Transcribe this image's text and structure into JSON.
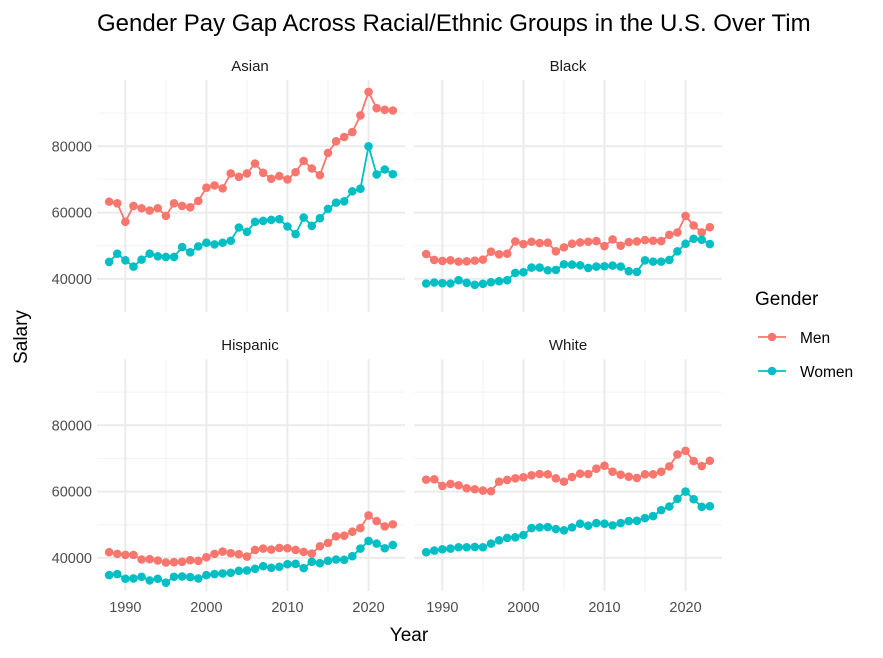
{
  "chart_data": {
    "type": "line",
    "title": "Gender Pay Gap Across Racial/Ethnic Groups in the U.S. Over Tim",
    "xlabel": "Year",
    "ylabel": "Salary",
    "xlim": [
      1986.5,
      2024.5
    ],
    "ylim": [
      30000,
      100000
    ],
    "x_ticks": [
      1990,
      2000,
      2010,
      2020
    ],
    "y_ticks": [
      40000,
      60000,
      80000
    ],
    "grid": true,
    "legend": {
      "title": "Gender",
      "position": "right",
      "entries": [
        {
          "name": "Men",
          "color": "#F8766D"
        },
        {
          "name": "Women",
          "color": "#00BFC4"
        }
      ]
    },
    "x": [
      1988,
      1989,
      1990,
      1991,
      1992,
      1993,
      1994,
      1995,
      1996,
      1997,
      1998,
      1999,
      2000,
      2001,
      2002,
      2003,
      2004,
      2005,
      2006,
      2007,
      2008,
      2009,
      2010,
      2011,
      2012,
      2013,
      2014,
      2015,
      2016,
      2017,
      2018,
      2019,
      2020,
      2021,
      2022,
      2023
    ],
    "facets": [
      {
        "label": "Asian",
        "series": [
          {
            "name": "Men",
            "values": [
              63300,
              62800,
              57200,
              62000,
              61300,
              60600,
              61300,
              59000,
              62800,
              62000,
              61600,
              63500,
              67500,
              68200,
              67300,
              71800,
              70800,
              71800,
              74800,
              72000,
              70200,
              71000,
              70000,
              72200,
              75600,
              73300,
              71300,
              78000,
              81500,
              82800,
              84300,
              89300,
              96400,
              91500,
              91000,
              90800
            ]
          },
          {
            "name": "Women",
            "values": [
              45100,
              47600,
              45600,
              43700,
              45800,
              47600,
              46800,
              46600,
              46600,
              49600,
              48000,
              49800,
              50900,
              50400,
              50900,
              51500,
              55500,
              54200,
              57200,
              57500,
              57800,
              58000,
              55800,
              53500,
              58500,
              56000,
              58300,
              61100,
              63000,
              63400,
              66400,
              67200,
              80000,
              71500,
              73000,
              71600
            ]
          }
        ]
      },
      {
        "label": "Black",
        "series": [
          {
            "name": "Men",
            "values": [
              47500,
              45700,
              45400,
              45600,
              45200,
              45300,
              45500,
              45800,
              48200,
              47400,
              47600,
              51300,
              50500,
              51200,
              50800,
              50900,
              48300,
              49500,
              50600,
              51000,
              51200,
              51400,
              49900,
              51900,
              50000,
              51100,
              51300,
              51700,
              51500,
              51400,
              53300,
              54000,
              59000,
              56100,
              54000,
              55600
            ]
          },
          {
            "name": "Women",
            "values": [
              38600,
              38900,
              38700,
              38600,
              39600,
              38800,
              38200,
              38500,
              39000,
              39300,
              39600,
              41800,
              42000,
              43400,
              43400,
              42600,
              42700,
              44400,
              44300,
              44100,
              43300,
              43700,
              43800,
              44000,
              43700,
              42300,
              42100,
              45600,
              45200,
              45200,
              45700,
              48300,
              50600,
              52100,
              51800,
              50500
            ]
          }
        ]
      },
      {
        "label": "Hispanic",
        "series": [
          {
            "name": "Men",
            "values": [
              41700,
              41200,
              40900,
              40900,
              39500,
              39600,
              39200,
              38600,
              38700,
              38800,
              39300,
              39100,
              40200,
              41200,
              41900,
              41400,
              41100,
              40400,
              42400,
              42800,
              42500,
              43000,
              42900,
              42400,
              41800,
              41300,
              43500,
              44500,
              46500,
              46700,
              47900,
              49000,
              52800,
              51100,
              49500,
              50100
            ]
          },
          {
            "name": "Women",
            "values": [
              34800,
              35100,
              33700,
              33800,
              34300,
              33200,
              33700,
              32500,
              34300,
              34400,
              34200,
              33800,
              34800,
              35100,
              35300,
              35500,
              36100,
              36200,
              36700,
              37500,
              37000,
              37300,
              38100,
              38200,
              36900,
              38800,
              38400,
              39100,
              39500,
              39400,
              40500,
              42800,
              45100,
              44300,
              42900,
              43900
            ]
          }
        ]
      },
      {
        "label": "White",
        "series": [
          {
            "name": "Men",
            "values": [
              63600,
              63700,
              61700,
              62300,
              61900,
              61000,
              60700,
              60300,
              60100,
              63000,
              63500,
              64000,
              64300,
              64900,
              65300,
              65200,
              64000,
              63000,
              64400,
              65400,
              65300,
              66900,
              67800,
              66000,
              65100,
              64500,
              64100,
              65200,
              65200,
              66000,
              67600,
              71200,
              72300,
              69200,
              67700,
              69300
            ]
          },
          {
            "name": "Women",
            "values": [
              41700,
              42200,
              42600,
              42800,
              43200,
              43200,
              43300,
              43200,
              44300,
              45300,
              46000,
              46200,
              46900,
              49000,
              49200,
              49300,
              48700,
              48300,
              49200,
              50300,
              49700,
              50500,
              50300,
              49800,
              50500,
              51100,
              51200,
              52000,
              52600,
              54400,
              55500,
              57800,
              60000,
              57700,
              55400,
              55600
            ]
          }
        ]
      }
    ]
  }
}
